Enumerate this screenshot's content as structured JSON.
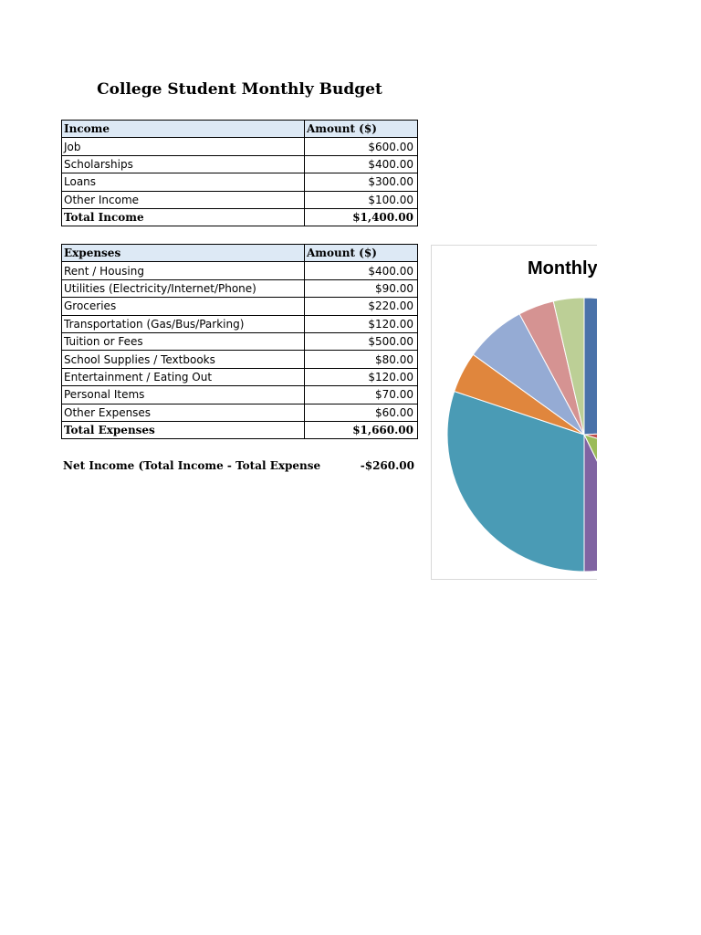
{
  "page_title": "College Student Monthly Budget",
  "income": {
    "header": {
      "label": "Income",
      "amount": "Amount ($)"
    },
    "rows": [
      {
        "label": "Job",
        "amount": "$600.00"
      },
      {
        "label": "Scholarships",
        "amount": "$400.00"
      },
      {
        "label": "Loans",
        "amount": "$300.00"
      },
      {
        "label": "Other Income",
        "amount": "$100.00"
      }
    ],
    "total": {
      "label": "Total Income",
      "amount": "$1,400.00"
    }
  },
  "expenses": {
    "header": {
      "label": "Expenses",
      "amount": "Amount ($)"
    },
    "rows": [
      {
        "label": "Rent / Housing",
        "amount": "$400.00"
      },
      {
        "label": "Utilities (Electricity/Internet/Phone)",
        "amount": "$90.00"
      },
      {
        "label": "Groceries",
        "amount": "$220.00"
      },
      {
        "label": "Transportation (Gas/Bus/Parking)",
        "amount": "$120.00"
      },
      {
        "label": "Tuition or Fees",
        "amount": "$500.00"
      },
      {
        "label": "School Supplies / Textbooks",
        "amount": "$80.00"
      },
      {
        "label": "Entertainment / Eating Out",
        "amount": "$120.00"
      },
      {
        "label": "Personal Items",
        "amount": "$70.00"
      },
      {
        "label": "Other Expenses",
        "amount": "$60.00"
      }
    ],
    "total": {
      "label": "Total Expenses",
      "amount": "$1,660.00"
    }
  },
  "net_income": {
    "label": "Net Income (Total Income - Total Expense",
    "value": "-$260.00"
  },
  "chart_data": {
    "type": "pie",
    "title": "Monthly",
    "values": [
      400,
      90,
      220,
      120,
      500,
      80,
      120,
      70,
      60
    ],
    "colors": [
      "#4a72a9",
      "#c0504d",
      "#9bbb59",
      "#8064a2",
      "#4a9bb5",
      "#e0863d",
      "#95abd4",
      "#d59392",
      "#bccf96"
    ]
  }
}
